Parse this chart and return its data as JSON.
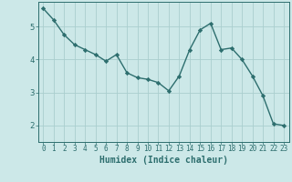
{
  "x": [
    0,
    1,
    2,
    3,
    4,
    5,
    6,
    7,
    8,
    9,
    10,
    11,
    12,
    13,
    14,
    15,
    16,
    17,
    18,
    19,
    20,
    21,
    22,
    23
  ],
  "y": [
    5.55,
    5.2,
    4.75,
    4.45,
    4.3,
    4.15,
    3.95,
    4.15,
    3.6,
    3.45,
    3.4,
    3.3,
    3.05,
    3.5,
    4.3,
    4.9,
    5.1,
    4.3,
    4.35,
    4.0,
    3.5,
    2.9,
    2.05,
    2.0
  ],
  "line_color": "#2d6e6e",
  "marker": "D",
  "marker_size": 2.2,
  "line_width": 1.0,
  "xlabel": "Humidex (Indice chaleur)",
  "xlabel_fontsize": 7,
  "xlabel_color": "#2d6e6e",
  "ylabel_ticks": [
    2,
    3,
    4,
    5
  ],
  "xlim": [
    -0.5,
    23.5
  ],
  "ylim": [
    1.5,
    5.75
  ],
  "xtick_labels": [
    "0",
    "1",
    "2",
    "3",
    "4",
    "5",
    "6",
    "7",
    "8",
    "9",
    "10",
    "11",
    "12",
    "13",
    "14",
    "15",
    "16",
    "17",
    "18",
    "19",
    "20",
    "21",
    "22",
    "23"
  ],
  "background_color": "#cce8e8",
  "grid_color": "#aacece",
  "tick_color": "#2d6e6e",
  "tick_fontsize": 5.5,
  "ytick_fontsize": 6.5,
  "ytick_color": "#2d6e6e"
}
